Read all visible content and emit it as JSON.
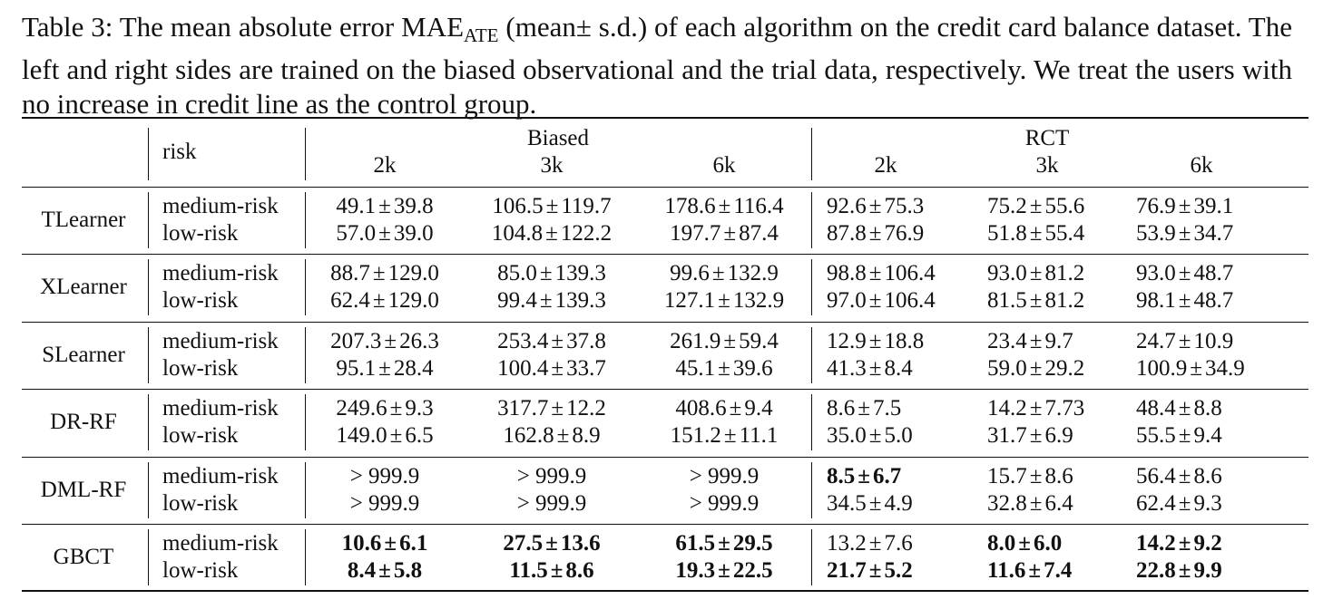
{
  "caption": {
    "pre": "Table 3: The mean absolute error ",
    "metric_main": "MAE",
    "metric_sub": "ATE",
    "post": " (mean± s.d.) of each algorithm on the credit card balance dataset. The left and right sides are trained on the biased observational and the trial data, respectively. We treat the users with no increase in credit line as the control group."
  },
  "header": {
    "risk": "risk",
    "biased": "Biased",
    "rct": "RCT",
    "columns": [
      "2k",
      "3k",
      "6k",
      "2k",
      "3k",
      "6k"
    ]
  },
  "plus_minus": "±",
  "rows": [
    {
      "model": "TLearner",
      "entries": [
        {
          "risk": "medium-risk",
          "cells": [
            {
              "m": "49.1",
              "s": "39.8",
              "bold": false
            },
            {
              "m": "106.5",
              "s": "119.7",
              "bold": false
            },
            {
              "m": "178.6",
              "s": "116.4",
              "bold": false
            },
            {
              "m": "92.6",
              "s": "75.3",
              "bold": false
            },
            {
              "m": "75.2",
              "s": "55.6",
              "bold": false
            },
            {
              "m": "76.9",
              "s": "39.1",
              "bold": false
            }
          ]
        },
        {
          "risk": "low-risk",
          "cells": [
            {
              "m": "57.0",
              "s": "39.0",
              "bold": false
            },
            {
              "m": "104.8",
              "s": "122.2",
              "bold": false
            },
            {
              "m": "197.7",
              "s": "87.4",
              "bold": false
            },
            {
              "m": "87.8",
              "s": "76.9",
              "bold": false
            },
            {
              "m": "51.8",
              "s": "55.4",
              "bold": false
            },
            {
              "m": "53.9",
              "s": "34.7",
              "bold": false
            }
          ]
        }
      ]
    },
    {
      "model": "XLearner",
      "entries": [
        {
          "risk": "medium-risk",
          "cells": [
            {
              "m": "88.7",
              "s": "129.0",
              "bold": false
            },
            {
              "m": "85.0",
              "s": "139.3",
              "bold": false
            },
            {
              "m": "99.6",
              "s": "132.9",
              "bold": false
            },
            {
              "m": "98.8",
              "s": "106.4",
              "bold": false
            },
            {
              "m": "93.0",
              "s": "81.2",
              "bold": false
            },
            {
              "m": "93.0",
              "s": "48.7",
              "bold": false
            }
          ]
        },
        {
          "risk": "low-risk",
          "cells": [
            {
              "m": "62.4",
              "s": "129.0",
              "bold": false
            },
            {
              "m": "99.4",
              "s": "139.3",
              "bold": false
            },
            {
              "m": "127.1",
              "s": "132.9",
              "bold": false
            },
            {
              "m": "97.0",
              "s": "106.4",
              "bold": false
            },
            {
              "m": "81.5",
              "s": "81.2",
              "bold": false
            },
            {
              "m": "98.1",
              "s": "48.7",
              "bold": false
            }
          ]
        }
      ]
    },
    {
      "model": "SLearner",
      "entries": [
        {
          "risk": "medium-risk",
          "cells": [
            {
              "m": "207.3",
              "s": "26.3",
              "bold": false
            },
            {
              "m": "253.4",
              "s": "37.8",
              "bold": false
            },
            {
              "m": "261.9",
              "s": "59.4",
              "bold": false
            },
            {
              "m": "12.9",
              "s": "18.8",
              "bold": false
            },
            {
              "m": "23.4",
              "s": "9.7",
              "bold": false
            },
            {
              "m": "24.7",
              "s": "10.9",
              "bold": false
            }
          ]
        },
        {
          "risk": "low-risk",
          "cells": [
            {
              "m": "95.1",
              "s": "28.4",
              "bold": false
            },
            {
              "m": "100.4",
              "s": "33.7",
              "bold": false
            },
            {
              "m": "45.1",
              "s": "39.6",
              "bold": false
            },
            {
              "m": "41.3",
              "s": "8.4",
              "bold": false
            },
            {
              "m": "59.0",
              "s": "29.2",
              "bold": false
            },
            {
              "m": "100.9",
              "s": "34.9",
              "bold": false
            }
          ]
        }
      ]
    },
    {
      "model": "DR-RF",
      "entries": [
        {
          "risk": "medium-risk",
          "cells": [
            {
              "m": "249.6",
              "s": "9.3",
              "bold": false
            },
            {
              "m": "317.7",
              "s": "12.2",
              "bold": false
            },
            {
              "m": "408.6",
              "s": "9.4",
              "bold": false
            },
            {
              "m": "8.6",
              "s": "7.5",
              "bold": false
            },
            {
              "m": "14.2",
              "s": "7.73",
              "bold": false
            },
            {
              "m": "48.4",
              "s": "8.8",
              "bold": false
            }
          ]
        },
        {
          "risk": "low-risk",
          "cells": [
            {
              "m": "149.0",
              "s": "6.5",
              "bold": false
            },
            {
              "m": "162.8",
              "s": "8.9",
              "bold": false
            },
            {
              "m": "151.2",
              "s": "11.1",
              "bold": false
            },
            {
              "m": "35.0",
              "s": "5.0",
              "bold": false
            },
            {
              "m": "31.7",
              "s": "6.9",
              "bold": false
            },
            {
              "m": "55.5",
              "s": "9.4",
              "bold": false
            }
          ]
        }
      ]
    },
    {
      "model": "DML-RF",
      "entries": [
        {
          "risk": "medium-risk",
          "cells": [
            {
              "text": "> 999.9",
              "bold": false
            },
            {
              "text": "> 999.9",
              "bold": false
            },
            {
              "text": "> 999.9",
              "bold": false
            },
            {
              "m": "8.5",
              "s": "6.7",
              "bold": true
            },
            {
              "m": "15.7",
              "s": "8.6",
              "bold": false
            },
            {
              "m": "56.4",
              "s": "8.6",
              "bold": false
            }
          ]
        },
        {
          "risk": "low-risk",
          "cells": [
            {
              "text": "> 999.9",
              "bold": false
            },
            {
              "text": "> 999.9",
              "bold": false
            },
            {
              "text": "> 999.9",
              "bold": false
            },
            {
              "m": "34.5",
              "s": "4.9",
              "bold": false
            },
            {
              "m": "32.8",
              "s": "6.4",
              "bold": false
            },
            {
              "m": "62.4",
              "s": "9.3",
              "bold": false
            }
          ]
        }
      ]
    },
    {
      "model": "GBCT",
      "entries": [
        {
          "risk": "medium-risk",
          "cells": [
            {
              "m": "10.6",
              "s": "6.1",
              "bold": true
            },
            {
              "m": "27.5",
              "s": "13.6",
              "bold": true
            },
            {
              "m": "61.5",
              "s": "29.5",
              "bold": true
            },
            {
              "m": "13.2",
              "s": "7.6",
              "bold": false
            },
            {
              "m": "8.0",
              "s": "6.0",
              "bold": true
            },
            {
              "m": "14.2",
              "s": "9.2",
              "bold": true
            }
          ]
        },
        {
          "risk": "low-risk",
          "cells": [
            {
              "m": "8.4",
              "s": "5.8",
              "bold": true
            },
            {
              "m": "11.5",
              "s": "8.6",
              "bold": true
            },
            {
              "m": "19.3",
              "s": "22.5",
              "bold": true
            },
            {
              "m": "21.7",
              "s": "5.2",
              "bold": true
            },
            {
              "m": "11.6",
              "s": "7.4",
              "bold": true
            },
            {
              "m": "22.8",
              "s": "9.9",
              "bold": true
            }
          ]
        }
      ]
    }
  ]
}
